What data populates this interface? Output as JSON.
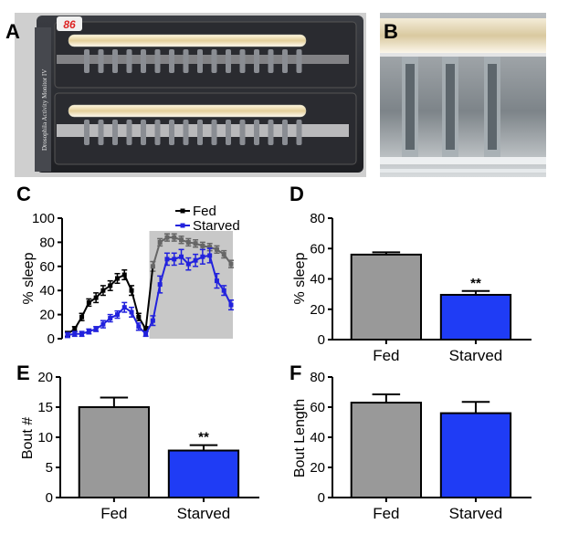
{
  "panel_labels": {
    "a": "A",
    "b": "B",
    "c": "C",
    "d": "D",
    "e": "E",
    "f": "F"
  },
  "photo_a": {
    "monitor_number": "86",
    "side_label": "Drosophila Activity Monitor IV"
  },
  "colors": {
    "fed": "#000000",
    "starved": "#2222dd",
    "bar_fed": "#999999",
    "bar_starved": "#1f3cf5",
    "night_shade": "#c8c8c8"
  },
  "chart_data": [
    {
      "id": "C",
      "type": "line",
      "ylabel": "% sleep",
      "ylim": [
        0,
        100
      ],
      "yticks": [
        0,
        20,
        40,
        60,
        80,
        100
      ],
      "night_start_index": 12,
      "legend": [
        "Fed",
        "Starved"
      ],
      "series": [
        {
          "name": "Fed",
          "values": [
            4,
            8,
            18,
            30,
            34,
            40,
            44,
            50,
            53,
            40,
            18,
            8,
            60,
            80,
            84,
            84,
            82,
            80,
            79,
            77,
            76,
            74,
            70,
            62
          ],
          "errors": [
            2,
            2,
            3,
            3,
            4,
            4,
            4,
            4,
            4,
            4,
            3,
            2,
            4,
            3,
            3,
            3,
            3,
            3,
            3,
            3,
            3,
            3,
            3,
            3
          ]
        },
        {
          "name": "Starved",
          "values": [
            3,
            4,
            4,
            6,
            8,
            12,
            17,
            20,
            26,
            22,
            10,
            4,
            15,
            45,
            66,
            66,
            68,
            62,
            65,
            68,
            69,
            48,
            40,
            28
          ],
          "errors": [
            2,
            2,
            2,
            2,
            2,
            3,
            3,
            3,
            4,
            4,
            3,
            2,
            4,
            7,
            5,
            5,
            6,
            5,
            5,
            6,
            6,
            6,
            4,
            4
          ]
        }
      ]
    },
    {
      "id": "D",
      "type": "bar",
      "ylabel": "% sleep",
      "ylim": [
        0,
        80
      ],
      "yticks": [
        0,
        20,
        40,
        60,
        80
      ],
      "categories": [
        "Fed",
        "Starved"
      ],
      "values": [
        56,
        29.5
      ],
      "errors": [
        1.5,
        2.5
      ],
      "significance": "**"
    },
    {
      "id": "E",
      "type": "bar",
      "ylabel": "Bout #",
      "ylim": [
        0,
        20
      ],
      "yticks": [
        0,
        5,
        10,
        15,
        20
      ],
      "categories": [
        "Fed",
        "Starved"
      ],
      "values": [
        15,
        7.8
      ],
      "errors": [
        1.6,
        0.9
      ],
      "significance": "**"
    },
    {
      "id": "F",
      "type": "bar",
      "ylabel": "Bout Length",
      "ylim": [
        0,
        80
      ],
      "yticks": [
        0,
        20,
        40,
        60,
        80
      ],
      "categories": [
        "Fed",
        "Starved"
      ],
      "values": [
        63,
        56
      ],
      "errors": [
        5.5,
        7.5
      ],
      "significance": ""
    }
  ]
}
